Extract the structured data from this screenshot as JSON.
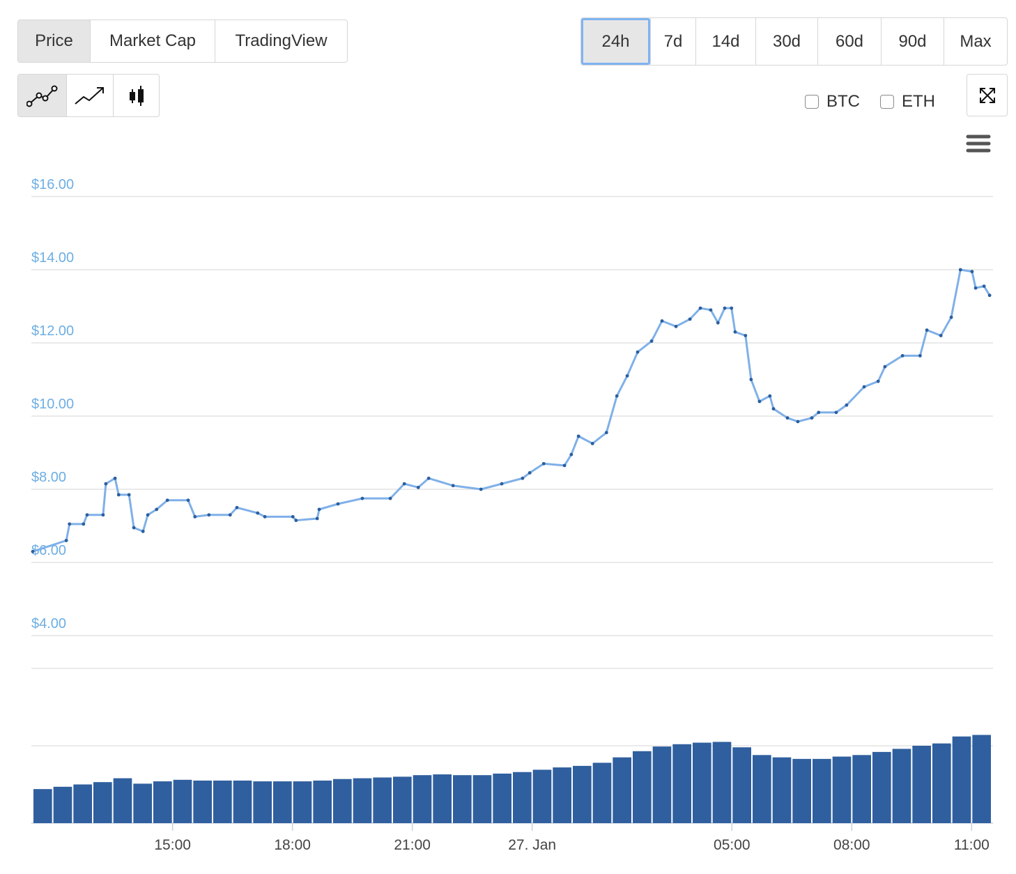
{
  "tabs": [
    "Price",
    "Market Cap",
    "TradingView"
  ],
  "ranges": [
    "24h",
    "7d",
    "14d",
    "30d",
    "60d",
    "90d",
    "Max"
  ],
  "compare": [
    "BTC",
    "ETH"
  ],
  "chart_data": [
    {
      "type": "line",
      "color": "#7fb0e8",
      "marker_color": "#2b5f9e",
      "grid": true,
      "xlim": [
        11.5,
        35.5
      ],
      "ylim": [
        3.2,
        16
      ],
      "yticks": [
        {
          "value": 4,
          "label": "$4.00"
        },
        {
          "value": 6,
          "label": "$6.00"
        },
        {
          "value": 8,
          "label": "$8.00"
        },
        {
          "value": 10,
          "label": "$10.00"
        },
        {
          "value": 12,
          "label": "$12.00"
        },
        {
          "value": 14,
          "label": "$14.00"
        },
        {
          "value": 16,
          "label": "$16.00"
        }
      ],
      "x": [
        11.5,
        12.34,
        12.42,
        12.77,
        12.86,
        13.26,
        13.33,
        13.56,
        13.65,
        13.91,
        14.03,
        14.26,
        14.38,
        14.6,
        14.87,
        15.39,
        15.56,
        15.91,
        16.44,
        16.61,
        17.13,
        17.31,
        18.01,
        18.09,
        18.62,
        18.67,
        19.14,
        19.75,
        20.45,
        20.8,
        21.15,
        21.41,
        22.02,
        22.72,
        23.24,
        23.76,
        23.94,
        24.29,
        24.81,
        24.98,
        25.16,
        25.51,
        25.86,
        26.12,
        26.38,
        26.64,
        26.99,
        27.25,
        27.6,
        27.95,
        28.21,
        28.47,
        28.65,
        28.82,
        28.99,
        29.08,
        29.34,
        29.48,
        29.69,
        29.95,
        30.04,
        30.39,
        30.65,
        31.0,
        31.17,
        31.61,
        31.87,
        32.31,
        32.66,
        32.83,
        33.27,
        33.71,
        33.88,
        34.23,
        34.49,
        34.72,
        35.01,
        35.1,
        35.31,
        35.45
      ],
      "values": [
        6.3,
        6.6,
        7.05,
        7.05,
        7.3,
        7.3,
        8.15,
        8.3,
        7.85,
        7.85,
        6.95,
        6.85,
        7.3,
        7.45,
        7.7,
        7.7,
        7.25,
        7.3,
        7.3,
        7.5,
        7.35,
        7.25,
        7.25,
        7.15,
        7.2,
        7.45,
        7.6,
        7.75,
        7.75,
        8.15,
        8.05,
        8.3,
        8.1,
        8.0,
        8.15,
        8.3,
        8.45,
        8.7,
        8.65,
        8.95,
        9.45,
        9.25,
        9.55,
        10.55,
        11.1,
        11.75,
        12.05,
        12.6,
        12.45,
        12.65,
        12.95,
        12.9,
        12.55,
        12.95,
        12.95,
        12.3,
        12.2,
        11.0,
        10.4,
        10.55,
        10.2,
        9.95,
        9.85,
        9.95,
        10.1,
        10.1,
        10.3,
        10.8,
        10.95,
        11.35,
        11.65,
        11.65,
        12.35,
        12.2,
        12.7,
        14.0,
        13.95,
        13.5,
        13.55,
        13.3
      ]
    },
    {
      "type": "bar",
      "color": "#2f5f9e",
      "grid": true,
      "xlim": [
        11.5,
        35.5
      ],
      "xticks": [
        {
          "value": 15,
          "label": "15:00"
        },
        {
          "value": 18,
          "label": "18:00"
        },
        {
          "value": 21,
          "label": "21:00"
        },
        {
          "value": 24,
          "label": "27. Jan"
        },
        {
          "value": 29,
          "label": "05:00"
        },
        {
          "value": 32,
          "label": "08:00"
        },
        {
          "value": 35,
          "label": "11:00"
        }
      ],
      "ylim": [
        0,
        2
      ],
      "yticks": [
        0,
        1,
        2
      ],
      "x": [
        11.75,
        12.25,
        12.75,
        13.25,
        13.75,
        14.25,
        14.75,
        15.25,
        15.75,
        16.25,
        16.75,
        17.25,
        17.75,
        18.25,
        18.75,
        19.25,
        19.75,
        20.25,
        20.75,
        21.25,
        21.75,
        22.25,
        22.75,
        23.25,
        23.75,
        24.25,
        24.75,
        25.25,
        25.75,
        26.25,
        26.75,
        27.25,
        27.75,
        28.25,
        28.75,
        29.25,
        29.75,
        30.25,
        30.75,
        31.25,
        31.75,
        32.25,
        32.75,
        33.25,
        33.75,
        34.25,
        34.75,
        35.25
      ],
      "values": [
        0.44,
        0.47,
        0.5,
        0.53,
        0.58,
        0.51,
        0.54,
        0.56,
        0.55,
        0.55,
        0.55,
        0.54,
        0.54,
        0.54,
        0.55,
        0.57,
        0.58,
        0.59,
        0.6,
        0.62,
        0.63,
        0.62,
        0.62,
        0.64,
        0.66,
        0.69,
        0.72,
        0.74,
        0.78,
        0.85,
        0.93,
        0.99,
        1.02,
        1.04,
        1.05,
        0.98,
        0.88,
        0.85,
        0.83,
        0.83,
        0.86,
        0.88,
        0.92,
        0.96,
        1.0,
        1.03,
        1.12,
        1.14
      ]
    }
  ]
}
